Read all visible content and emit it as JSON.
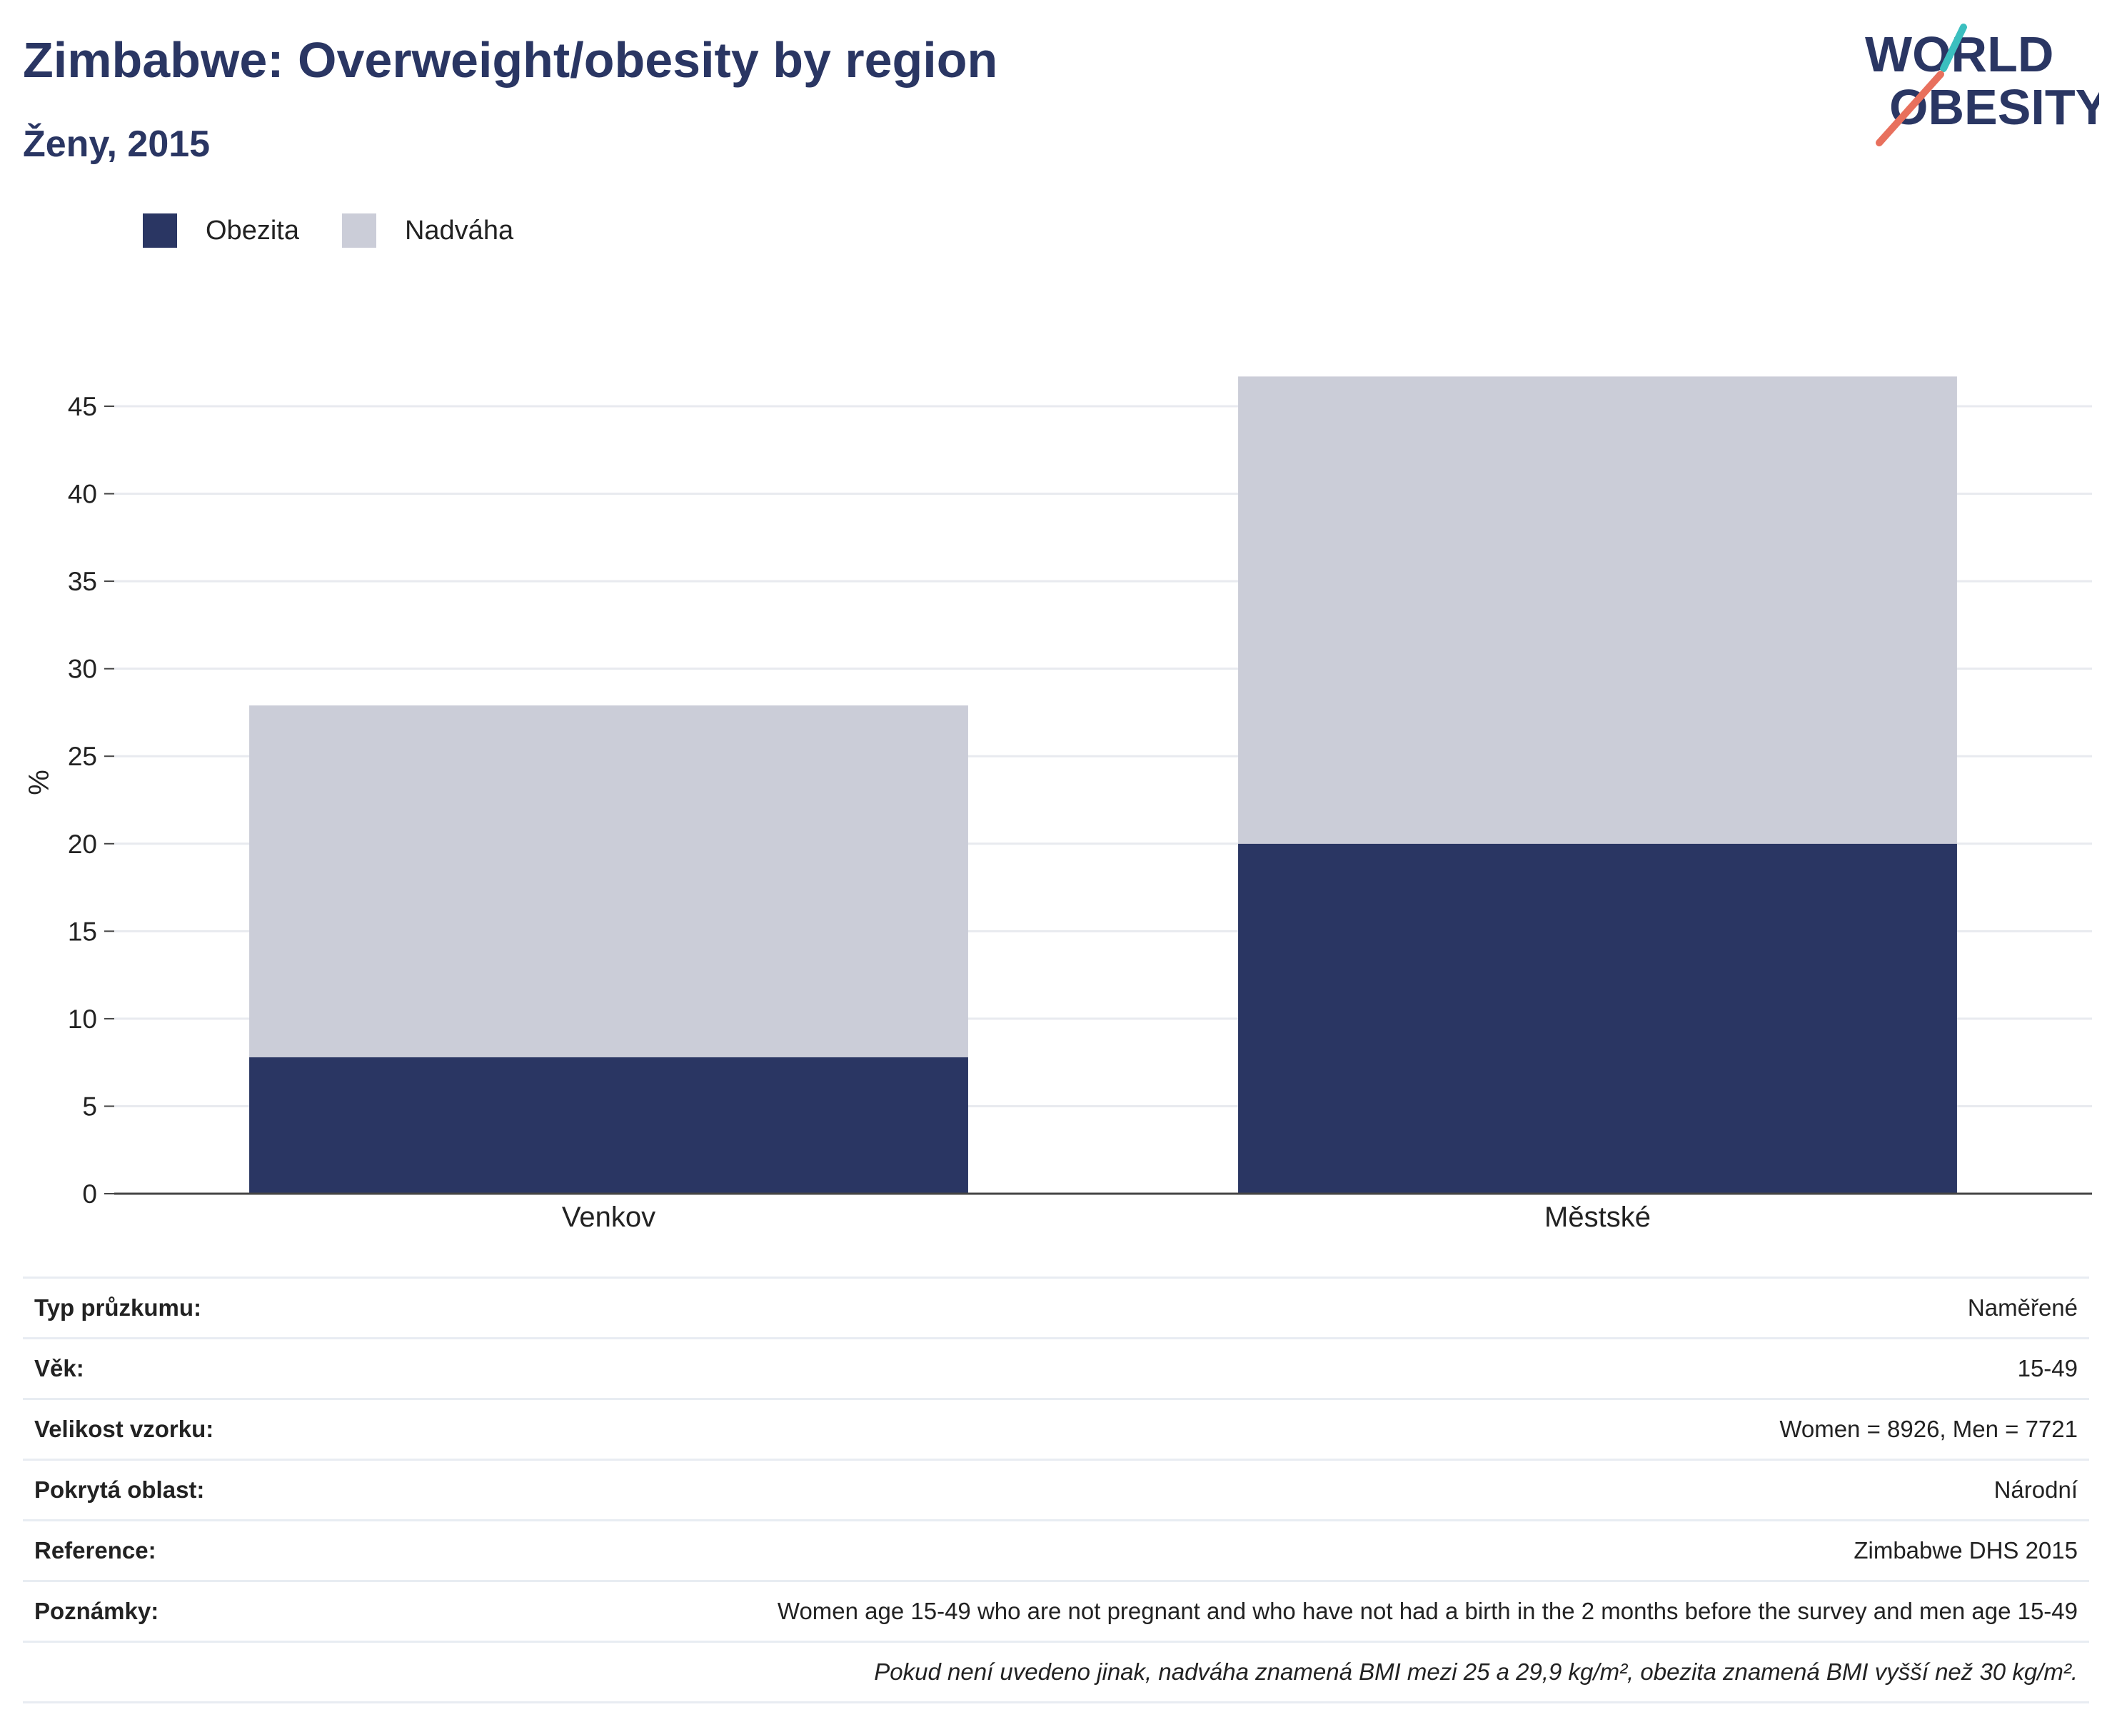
{
  "header": {
    "title": "Zimbabwe: Overweight/obesity by region",
    "subtitle": "Ženy, 2015"
  },
  "logo": {
    "line1": "WORLD",
    "line2": "OBESITY"
  },
  "colors": {
    "obesity": "#2a3663",
    "overweight": "#cbcdd8",
    "accent_teal": "#3bbfbf",
    "accent_red": "#e8705d"
  },
  "chart_data": {
    "type": "bar",
    "stacked": true,
    "categories": [
      "Venkov",
      "Městské"
    ],
    "series": [
      {
        "name": "Obezita",
        "values": [
          7.8,
          20.0
        ],
        "color": "#2a3663"
      },
      {
        "name": "Nadváha",
        "values": [
          20.1,
          26.7
        ],
        "color": "#cbcdd8"
      }
    ],
    "ylabel": "%",
    "ylim": [
      0,
      47
    ],
    "yticks": [
      0,
      5,
      10,
      15,
      20,
      25,
      30,
      35,
      40,
      45
    ],
    "grid": true,
    "legend_position": "top-left"
  },
  "meta": {
    "rows": [
      {
        "key": "Typ průzkumu:",
        "value": "Naměřené"
      },
      {
        "key": "Věk:",
        "value": "15-49"
      },
      {
        "key": "Velikost vzorku:",
        "value": "Women = 8926, Men = 7721"
      },
      {
        "key": "Pokrytá oblast:",
        "value": "Národní"
      },
      {
        "key": "Reference:",
        "value": "Zimbabwe DHS 2015"
      },
      {
        "key": "Poznámky:",
        "value": "Women age 15-49 who are not pregnant and who have not had a birth in the 2 months before the survey and men age 15-49"
      }
    ],
    "footnote": "Pokud není uvedeno jinak, nadváha znamená BMI mezi 25 a 29,9 kg/m², obezita znamená BMI vyšší než 30 kg/m²."
  }
}
